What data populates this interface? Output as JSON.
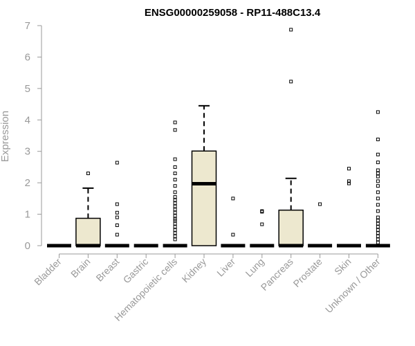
{
  "chart_data": {
    "type": "boxplot",
    "title": "ENSG00000259058 - RP11-488C13.4",
    "ylabel": "Expression",
    "xlabel": "",
    "ylim": [
      0,
      7
    ],
    "yticks": [
      "0",
      "1",
      "2",
      "3",
      "4",
      "5",
      "6",
      "7"
    ],
    "grid": false,
    "box_fill": "#ede8cf",
    "categories": [
      {
        "name": "Bladder",
        "q1": 0,
        "median": 0,
        "q3": 0,
        "whisker_high": 0,
        "outliers": []
      },
      {
        "name": "Brain",
        "q1": 0,
        "median": 0,
        "q3": 0.87,
        "whisker_high": 1.83,
        "outliers": [
          2.3
        ]
      },
      {
        "name": "Breast",
        "q1": 0,
        "median": 0,
        "q3": 0,
        "whisker_high": 0,
        "outliers": [
          0.35,
          0.65,
          0.9,
          1.05,
          1.32,
          2.64
        ]
      },
      {
        "name": "Gastric",
        "q1": 0,
        "median": 0,
        "q3": 0,
        "whisker_high": 0,
        "outliers": []
      },
      {
        "name": "Hematopoietic cells",
        "q1": 0,
        "median": 0,
        "q3": 0,
        "whisker_high": 0,
        "outliers": [
          0.2,
          0.3,
          0.4,
          0.5,
          0.6,
          0.7,
          0.8,
          0.85,
          0.95,
          1.05,
          1.15,
          1.25,
          1.35,
          1.45,
          1.55,
          1.7,
          1.9,
          2.1,
          2.3,
          2.5,
          2.75,
          3.68,
          3.92
        ]
      },
      {
        "name": "Kidney",
        "q1": 0,
        "median": 1.97,
        "q3": 3.01,
        "whisker_high": 4.45,
        "outliers": []
      },
      {
        "name": "Liver",
        "q1": 0,
        "median": 0,
        "q3": 0,
        "whisker_high": 0,
        "outliers": [
          0.35,
          1.5
        ]
      },
      {
        "name": "Lung",
        "q1": 0,
        "median": 0,
        "q3": 0,
        "whisker_high": 0,
        "outliers": [
          0.68,
          1.08,
          1.1
        ]
      },
      {
        "name": "Pancreas",
        "q1": 0,
        "median": 0,
        "q3": 1.13,
        "whisker_high": 2.14,
        "outliers": [
          5.22,
          6.87
        ]
      },
      {
        "name": "Prostate",
        "q1": 0,
        "median": 0,
        "q3": 0,
        "whisker_high": 0,
        "outliers": [
          1.32
        ]
      },
      {
        "name": "Skin",
        "q1": 0,
        "median": 0,
        "q3": 0,
        "whisker_high": 0,
        "outliers": [
          1.98,
          2.05,
          2.45
        ]
      },
      {
        "name": "Unknown / Other",
        "q1": 0,
        "median": 0,
        "q3": 0,
        "whisker_high": 0,
        "outliers": [
          0.1,
          0.2,
          0.3,
          0.4,
          0.5,
          0.6,
          0.7,
          0.8,
          0.9,
          1.1,
          1.3,
          1.5,
          1.7,
          1.9,
          2.05,
          2.2,
          2.3,
          2.4,
          2.65,
          2.9,
          3.38,
          4.25
        ]
      }
    ]
  }
}
